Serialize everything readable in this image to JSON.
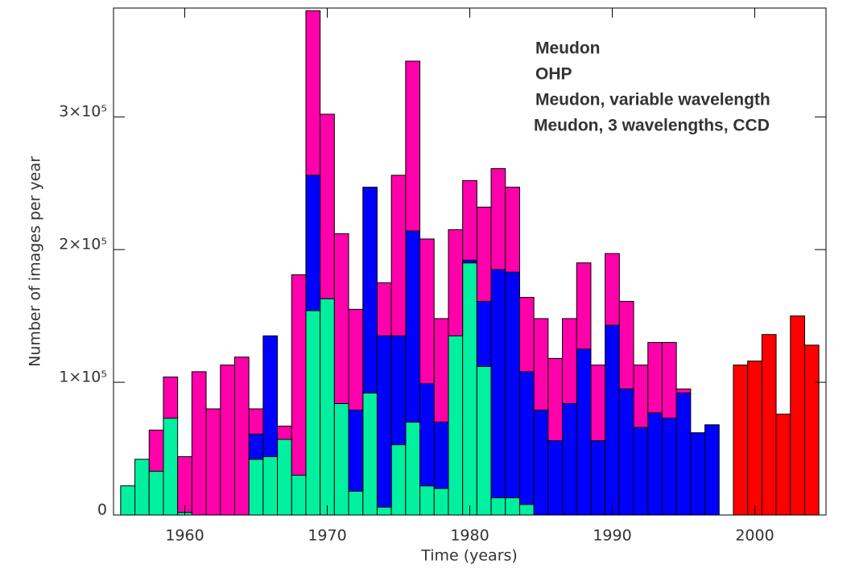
{
  "chart_data": {
    "type": "bar",
    "stacked": true,
    "x_label": "Time (years)",
    "y_label": "Number of images per year",
    "x": [
      1956,
      1957,
      1958,
      1959,
      1960,
      1961,
      1962,
      1963,
      1964,
      1965,
      1966,
      1967,
      1968,
      1969,
      1970,
      1971,
      1972,
      1973,
      1974,
      1975,
      1976,
      1977,
      1978,
      1979,
      1980,
      1981,
      1982,
      1983,
      1984,
      1985,
      1986,
      1987,
      1988,
      1989,
      1990,
      1991,
      1992,
      1993,
      1994,
      1995,
      1996,
      1997,
      1999,
      2000,
      2001,
      2002,
      2003,
      2004
    ],
    "series": [
      {
        "name": "Meudon",
        "color": "#00f0a0",
        "legend_color": "#22aa44",
        "values": [
          22000,
          42000,
          33000,
          73000,
          2000,
          null,
          null,
          null,
          null,
          42000,
          44000,
          57000,
          30000,
          154000,
          163000,
          84000,
          18000,
          92000,
          6000,
          53000,
          70000,
          22000,
          20000,
          135000,
          190000,
          112000,
          13000,
          13000,
          8000,
          null,
          null,
          null,
          null,
          null,
          null,
          null,
          null,
          null,
          null,
          null,
          null,
          null,
          null,
          null,
          null,
          null,
          null,
          null
        ]
      },
      {
        "name": "Meudon, variable wavelength",
        "color": "#0000ff",
        "legend_color": "#3344bb",
        "values": [
          null,
          null,
          null,
          null,
          null,
          null,
          null,
          null,
          null,
          19000,
          91000,
          null,
          null,
          102000,
          null,
          null,
          61000,
          155000,
          129000,
          82000,
          144000,
          77000,
          50000,
          null,
          2000,
          49000,
          172000,
          170000,
          100000,
          79000,
          56000,
          84000,
          125000,
          56000,
          143000,
          95000,
          66000,
          77000,
          73000,
          92000,
          62000,
          68000,
          null,
          null,
          null,
          null,
          null,
          null
        ]
      },
      {
        "name": "OHP",
        "color": "#ff00aa",
        "legend_color": "#ff77dd",
        "values": [
          null,
          null,
          31000,
          31000,
          42000,
          108000,
          80000,
          113000,
          119000,
          19000,
          null,
          10000,
          151000,
          124000,
          139000,
          128000,
          76000,
          null,
          40000,
          121000,
          128000,
          109000,
          78000,
          80000,
          60000,
          71000,
          76000,
          64000,
          56000,
          69000,
          62000,
          64000,
          65000,
          57000,
          54000,
          66000,
          47000,
          53000,
          57000,
          3000,
          null,
          null,
          null,
          null,
          null,
          null,
          null,
          null
        ]
      },
      {
        "name": "Meudon, 3 wavelengths, CCD",
        "color": "#ff0000",
        "legend_color": "#ee2222",
        "values": [
          null,
          null,
          null,
          null,
          null,
          null,
          null,
          null,
          null,
          null,
          null,
          null,
          null,
          null,
          null,
          null,
          null,
          null,
          null,
          null,
          null,
          null,
          null,
          null,
          null,
          null,
          null,
          null,
          null,
          null,
          null,
          null,
          null,
          null,
          null,
          null,
          null,
          null,
          null,
          null,
          null,
          null,
          113000,
          116000,
          136000,
          76000,
          150000,
          128000
        ]
      }
    ],
    "legend_order": [
      0,
      2,
      1,
      3
    ],
    "xlim": [
      1955,
      2005
    ],
    "xticks": [
      1960,
      1970,
      1980,
      1990,
      2000
    ],
    "ylim": [
      0,
      382000
    ],
    "yticks": [
      0,
      {
        "value": 100000,
        "label": "1×10⁵"
      },
      {
        "value": 200000,
        "label": "2×10⁵"
      },
      {
        "value": 300000,
        "label": "3×10⁵"
      }
    ]
  }
}
